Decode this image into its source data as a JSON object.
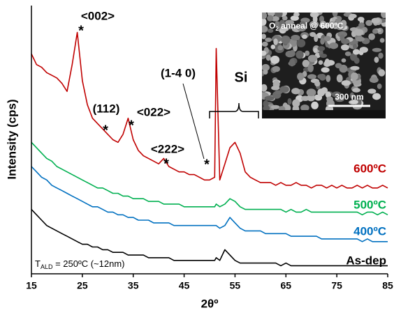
{
  "chart_data": {
    "type": "line",
    "x_label": "2θº",
    "y_label": "Intensity (cps)",
    "xlim": [
      15,
      85
    ],
    "xticks": [
      15,
      25,
      35,
      45,
      55,
      65,
      75,
      85
    ],
    "ylim": [
      0,
      100
    ],
    "x": [
      15,
      16,
      17,
      18,
      19,
      20,
      21,
      22,
      23,
      24,
      25,
      26,
      27,
      28,
      29,
      30,
      31,
      32,
      33,
      34,
      35,
      36,
      37,
      38,
      39,
      40,
      41,
      42,
      43,
      44,
      45,
      46,
      47,
      48,
      49,
      50,
      51,
      51.3,
      52,
      53,
      54,
      55,
      56,
      57,
      58,
      59,
      60,
      61,
      62,
      63,
      64,
      65,
      66,
      67,
      68,
      69,
      70,
      71,
      72,
      73,
      74,
      75,
      76,
      77,
      78,
      79,
      80,
      81,
      82,
      83,
      84,
      85
    ],
    "series": [
      {
        "name": "600ºC",
        "color": "#c00000",
        "values": [
          82,
          78,
          77,
          75,
          74,
          73,
          71,
          68,
          78,
          90,
          72,
          63,
          58,
          56,
          54,
          52,
          50,
          49,
          52,
          58,
          50,
          46,
          44,
          43,
          42,
          41,
          43,
          40,
          39,
          38,
          38,
          37,
          37,
          36,
          35,
          35,
          36,
          84,
          35,
          41,
          47,
          49,
          45,
          38,
          36,
          35,
          34,
          34,
          34,
          33,
          34,
          33,
          33,
          34,
          33,
          33,
          32,
          33,
          33,
          32,
          33,
          32,
          33,
          32,
          32,
          33,
          32,
          33,
          32,
          32,
          33,
          32
        ]
      },
      {
        "name": "500ºC",
        "color": "#00b050",
        "values": [
          49,
          47,
          45,
          43,
          42,
          40,
          39,
          38,
          37,
          36,
          35,
          34,
          33,
          32,
          32,
          31,
          30,
          30,
          29,
          29,
          28,
          28,
          28,
          27,
          27,
          27,
          26,
          26,
          26,
          26,
          25,
          25,
          25,
          25,
          25,
          25,
          25,
          26,
          25,
          26,
          28,
          27,
          25,
          24,
          24,
          24,
          24,
          24,
          24,
          24,
          24,
          23,
          24,
          23,
          23,
          24,
          23,
          23,
          23,
          23,
          23,
          23,
          23,
          23,
          23,
          23,
          22,
          23,
          23,
          22,
          23,
          22
        ]
      },
      {
        "name": "400ºC",
        "color": "#0070c0",
        "values": [
          40,
          38,
          36,
          35,
          33,
          32,
          31,
          30,
          29,
          28,
          27,
          26,
          25,
          25,
          24,
          23,
          23,
          22,
          22,
          21,
          21,
          20,
          20,
          20,
          19,
          19,
          19,
          19,
          18,
          18,
          18,
          18,
          18,
          18,
          18,
          18,
          18,
          18,
          17,
          18,
          21,
          19,
          17,
          16,
          16,
          16,
          16,
          15,
          15,
          15,
          15,
          15,
          14,
          14,
          14,
          14,
          14,
          14,
          13,
          13,
          13,
          13,
          13,
          13,
          13,
          13,
          12,
          13,
          12,
          12,
          12,
          12
        ]
      },
      {
        "name": "As-dep",
        "color": "#000000",
        "values": [
          24,
          22,
          20,
          18,
          17,
          16,
          15,
          14,
          13,
          12,
          11,
          11,
          10,
          10,
          9,
          9,
          8,
          8,
          8,
          7,
          7,
          7,
          7,
          6,
          6,
          6,
          6,
          6,
          5,
          5,
          5,
          5,
          5,
          5,
          5,
          5,
          5,
          6,
          5,
          9,
          7,
          5,
          4,
          4,
          4,
          4,
          4,
          4,
          4,
          4,
          3,
          4,
          3,
          3,
          3,
          3,
          3,
          3,
          3,
          3,
          3,
          3,
          3,
          3,
          3,
          3,
          3,
          3,
          3,
          3,
          3,
          3
        ]
      }
    ],
    "peak_labels": [
      "<002>",
      "(112)",
      "<022>",
      "<222>",
      "(1-4 0)",
      "Si"
    ],
    "markers": [
      "*",
      "*",
      "*",
      "*",
      "*"
    ],
    "condition": {
      "main": "T",
      "sub": "ALD",
      "rest": " = 250ºC (~12nm)"
    },
    "inset": {
      "title": {
        "main": "O",
        "sub": "2",
        "rest": " anneal @ 600ºC"
      },
      "scale": "300 nm"
    }
  }
}
